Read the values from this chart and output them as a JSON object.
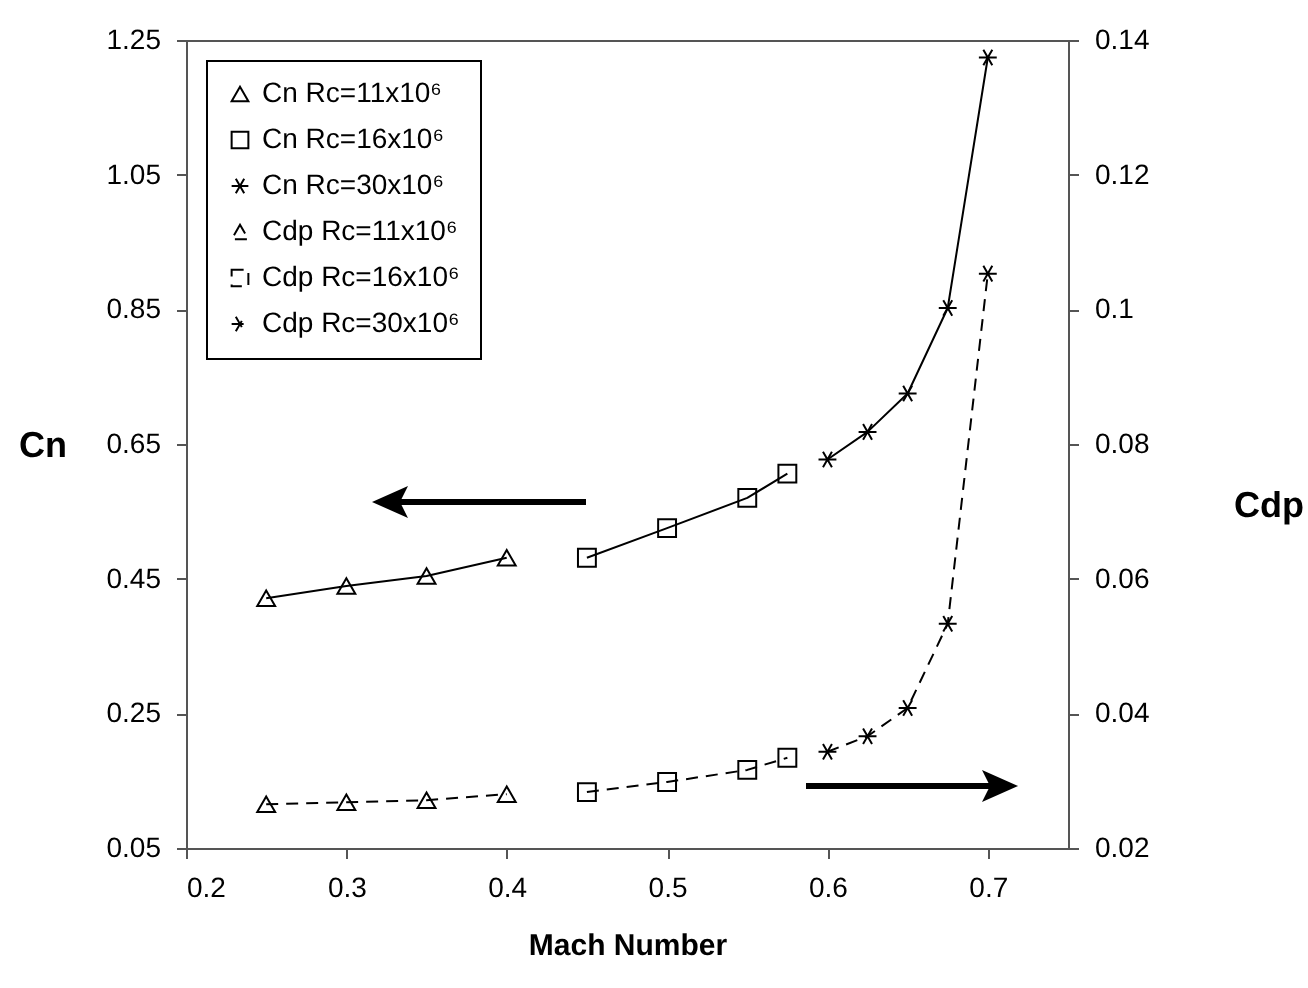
{
  "chart_data": {
    "type": "line",
    "xlabel": "Mach Number",
    "ylabel": "Cn",
    "y2label": "Cdp",
    "xlim": [
      0.2,
      0.75
    ],
    "xticks": [
      0.2,
      0.3,
      0.4,
      0.5,
      0.6,
      0.7
    ],
    "ylim": [
      0.05,
      1.25
    ],
    "yticks": [
      0.05,
      0.25,
      0.45,
      0.65,
      0.85,
      1.05,
      1.25
    ],
    "y2lim": [
      0.02,
      0.14
    ],
    "y2ticks": [
      0.02,
      0.04,
      0.06,
      0.08,
      0.1,
      0.12,
      0.14
    ],
    "grid": false,
    "legend": "top left",
    "series": [
      {
        "name": "Cn Rc=11x10⁶",
        "color": "#000000",
        "marker": "triangle",
        "line_style": "solid",
        "x": [
          0.25,
          0.3,
          0.35,
          0.4
        ],
        "values": [
          0.421,
          0.439,
          0.454,
          0.481
        ]
      },
      {
        "name": "Cn Rc=16x10⁶",
        "color": "#000000",
        "marker": "square",
        "line_style": "solid",
        "x": [
          0.45,
          0.5,
          0.55,
          0.575
        ],
        "values": [
          0.481,
          0.525,
          0.57,
          0.606
        ]
      },
      {
        "name": "Cn Rc=30x10⁶",
        "color": "#000000",
        "marker": "cross",
        "line_style": "solid",
        "x": [
          0.6,
          0.625,
          0.65,
          0.675,
          0.7
        ],
        "values": [
          0.627,
          0.668,
          0.725,
          0.852,
          1.224
        ]
      },
      {
        "name": "Cdp Rc=11x10⁶",
        "color": "#000000",
        "marker": "triangle",
        "line_style": "dashed",
        "axis": "y2",
        "x": [
          0.25,
          0.3,
          0.35,
          0.4
        ],
        "values": [
          0.0265,
          0.0268,
          0.0271,
          0.028
        ]
      },
      {
        "name": "Cdp Rc=16x10⁶",
        "color": "#000000",
        "marker": "square",
        "line_style": "dashed",
        "axis": "y2",
        "x": [
          0.45,
          0.5,
          0.55,
          0.575
        ],
        "values": [
          0.0283,
          0.0298,
          0.0316,
          0.0334
        ]
      },
      {
        "name": "Cdp Rc=30x10⁶",
        "color": "#000000",
        "marker": "cross",
        "line_style": "dashed",
        "axis": "y2",
        "x": [
          0.6,
          0.625,
          0.65,
          0.675,
          0.7
        ],
        "values": [
          0.0343,
          0.0366,
          0.0408,
          0.0533,
          0.1053
        ]
      }
    ]
  }
}
